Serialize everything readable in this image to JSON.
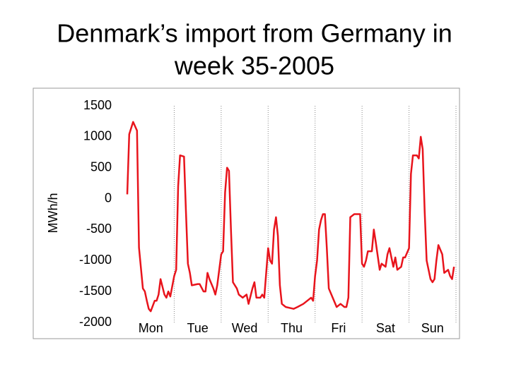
{
  "chart_data": {
    "type": "line",
    "title": [
      "Denmark’s import from Germany in",
      "week 35-2005"
    ],
    "ylabel": "MWh/h",
    "xlim": [
      0,
      168
    ],
    "ylim": [
      -2000,
      1500
    ],
    "yticks": [
      1500,
      1000,
      500,
      0,
      -500,
      -1000,
      -1500,
      -2000
    ],
    "xticks": [
      {
        "value": 12,
        "label": "Mon"
      },
      {
        "value": 36,
        "label": "Tue"
      },
      {
        "value": 60,
        "label": "Wed"
      },
      {
        "value": 84,
        "label": "Thu"
      },
      {
        "value": 108,
        "label": "Fri"
      },
      {
        "value": 132,
        "label": "Sat"
      },
      {
        "value": 156,
        "label": "Sun"
      }
    ],
    "xgrid": [
      24,
      48,
      72,
      96,
      120,
      144,
      168
    ],
    "grid_style": "dotted",
    "series": [
      {
        "color": "#e8141c",
        "x": [
          0,
          1,
          3,
          5,
          6,
          8,
          9,
          10,
          11,
          12,
          14,
          15,
          16,
          17,
          19,
          20,
          21,
          22,
          24,
          25,
          26,
          27,
          29,
          30,
          31,
          32,
          33,
          36,
          37,
          39,
          40,
          41,
          42,
          44,
          45,
          46,
          48,
          49,
          50,
          51,
          52,
          53,
          54,
          56,
          57,
          59,
          61,
          62,
          64,
          65,
          66,
          68,
          69,
          70,
          72,
          73,
          74,
          75,
          76,
          77,
          78,
          79,
          81,
          85,
          87,
          90,
          92,
          94,
          95,
          96,
          97,
          98,
          99,
          100,
          101,
          102,
          103,
          105,
          107,
          109,
          111,
          112,
          113,
          114,
          116,
          119,
          120,
          121,
          122,
          123,
          125,
          126,
          127,
          129,
          130,
          132,
          133,
          134,
          136,
          137,
          138,
          140,
          141,
          142,
          144,
          145,
          146,
          148,
          149,
          150,
          151,
          152,
          153,
          155,
          156,
          157,
          158,
          159,
          161,
          162,
          164,
          165,
          166,
          167
        ],
        "values": [
          70,
          1040,
          1240,
          1100,
          -790,
          -1450,
          -1500,
          -1650,
          -1780,
          -1820,
          -1650,
          -1650,
          -1550,
          -1300,
          -1550,
          -1600,
          -1500,
          -1580,
          -1250,
          -1150,
          200,
          700,
          680,
          -200,
          -1050,
          -1200,
          -1400,
          -1380,
          -1380,
          -1500,
          -1500,
          -1200,
          -1300,
          -1450,
          -1550,
          -1400,
          -900,
          -850,
          100,
          500,
          450,
          -500,
          -1350,
          -1450,
          -1550,
          -1600,
          -1550,
          -1700,
          -1450,
          -1350,
          -1600,
          -1600,
          -1550,
          -1600,
          -800,
          -1000,
          -1050,
          -500,
          -300,
          -600,
          -1400,
          -1700,
          -1750,
          -1780,
          -1750,
          -1700,
          -1650,
          -1600,
          -1650,
          -1250,
          -1000,
          -500,
          -350,
          -250,
          -250,
          -800,
          -1450,
          -1600,
          -1750,
          -1700,
          -1750,
          -1750,
          -1600,
          -300,
          -250,
          -250,
          -1050,
          -1100,
          -1000,
          -850,
          -850,
          -500,
          -700,
          -1150,
          -1050,
          -1100,
          -900,
          -800,
          -1100,
          -950,
          -1150,
          -1100,
          -950,
          -950,
          -800,
          400,
          700,
          700,
          650,
          1000,
          800,
          -200,
          -1000,
          -1300,
          -1350,
          -1300,
          -1000,
          -750,
          -900,
          -1200,
          -1150,
          -1250,
          -1300,
          -1100
        ]
      }
    ]
  }
}
